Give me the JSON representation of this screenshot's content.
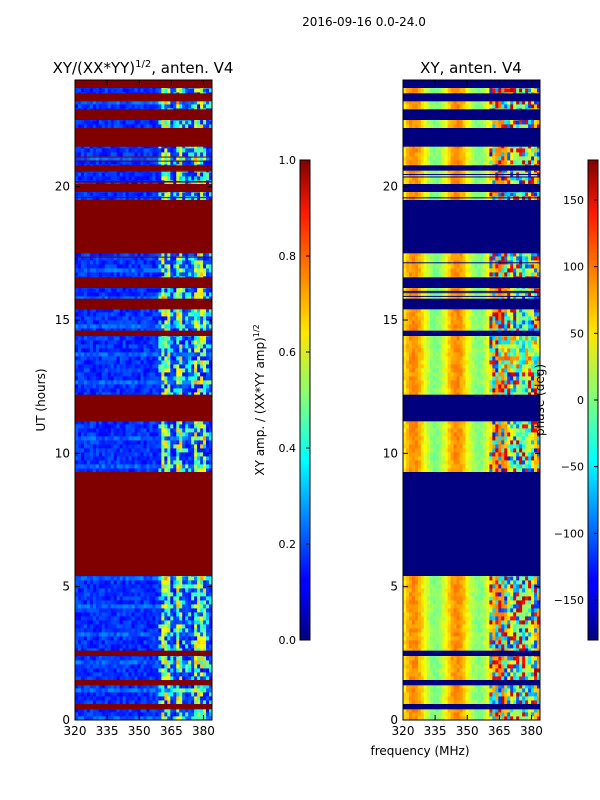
{
  "figure": {
    "suptitle": "2016-09-16 0.0-24.0"
  },
  "chart_data": [
    {
      "type": "heatmap",
      "title_main": "XY/(XX*YY)",
      "title_sup": "1/2",
      "title_rest": ", anten. V4",
      "xlabel": "",
      "ylabel": "UT (hours)",
      "xlim": [
        320,
        384
      ],
      "ylim": [
        0,
        24
      ],
      "xticks": [
        320,
        335,
        350,
        365,
        380
      ],
      "yticks": [
        0,
        5,
        10,
        15,
        20
      ],
      "flagged_intervals_hours": [
        [
          0.4,
          0.6
        ],
        [
          1.3,
          1.5
        ],
        [
          2.4,
          2.6
        ],
        [
          5.4,
          9.3
        ],
        [
          11.2,
          12.2
        ],
        [
          14.4,
          14.6
        ],
        [
          15.4,
          15.8
        ],
        [
          16.2,
          16.6
        ],
        [
          17.5,
          19.5
        ],
        [
          19.8,
          20.1
        ],
        [
          20.6,
          20.8
        ],
        [
          21.5,
          22.2
        ],
        [
          22.5,
          22.9
        ],
        [
          23.2,
          23.5
        ],
        [
          23.7,
          24.0
        ]
      ],
      "colorbar": {
        "label_main": "XY amp. / (XX*YY amp)",
        "label_sup": "1/2",
        "min": 0.0,
        "max": 1.0,
        "ticks": [
          "0.0",
          "0.2",
          "0.4",
          "0.6",
          "0.8",
          "1.0"
        ]
      }
    },
    {
      "type": "heatmap",
      "title": "XY, anten. V4",
      "xlabel": "frequency (MHz)",
      "ylabel": "",
      "xlim": [
        320,
        384
      ],
      "ylim": [
        0,
        24
      ],
      "xticks": [
        320,
        335,
        350,
        365,
        380
      ],
      "yticks": [
        0,
        5,
        10,
        15,
        20
      ],
      "flagged_intervals_hours": [
        [
          0.4,
          0.6
        ],
        [
          1.3,
          1.5
        ],
        [
          2.4,
          2.6
        ],
        [
          5.4,
          9.3
        ],
        [
          11.2,
          12.2
        ],
        [
          14.4,
          14.6
        ],
        [
          15.4,
          15.8
        ],
        [
          16.2,
          16.6
        ],
        [
          17.5,
          19.5
        ],
        [
          19.8,
          20.1
        ],
        [
          20.6,
          20.8
        ],
        [
          21.5,
          22.2
        ],
        [
          22.5,
          22.9
        ],
        [
          23.2,
          23.5
        ],
        [
          23.7,
          24.0
        ]
      ],
      "colorbar": {
        "label": "phase (deg)",
        "min": -180,
        "max": 180,
        "ticks": [
          "150",
          "100",
          "50",
          "0",
          "−50",
          "−100",
          "−150"
        ]
      }
    }
  ],
  "colors": {
    "flag_left": "#800000",
    "flag_right": "#00007f"
  }
}
